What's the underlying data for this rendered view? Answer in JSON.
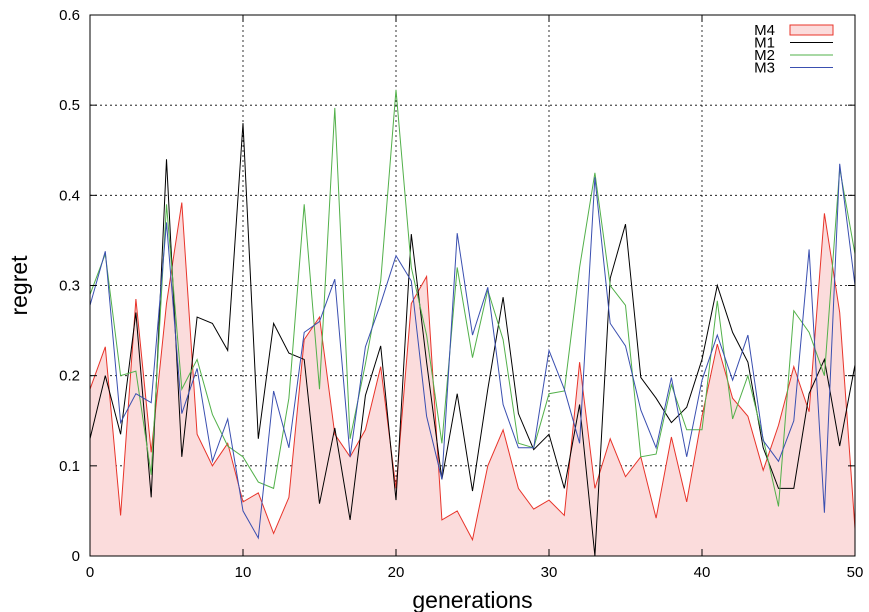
{
  "chart_data": {
    "type": "line",
    "xlabel": "generations",
    "ylabel": "regret",
    "xlim": [
      0,
      50
    ],
    "ylim": [
      0,
      0.6
    ],
    "grid": true,
    "legend_position": "top-right",
    "x_ticks": [
      0,
      10,
      20,
      30,
      40,
      50
    ],
    "y_ticks": [
      0,
      0.1,
      0.2,
      0.3,
      0.4,
      0.5,
      0.6
    ],
    "x_tick_labels": [
      "0",
      "10",
      "20",
      "30",
      "40",
      "50"
    ],
    "y_tick_labels": [
      "0",
      "0.1",
      "0.2",
      "0.3",
      "0.4",
      "0.5",
      "0.6"
    ],
    "x": [
      0,
      1,
      2,
      3,
      4,
      5,
      6,
      7,
      8,
      9,
      10,
      11,
      12,
      13,
      14,
      15,
      16,
      17,
      18,
      19,
      20,
      21,
      22,
      23,
      24,
      25,
      26,
      27,
      28,
      29,
      30,
      31,
      32,
      33,
      34,
      35,
      36,
      37,
      38,
      39,
      40,
      41,
      42,
      43,
      44,
      45,
      46,
      47,
      48,
      49,
      50
    ],
    "series": [
      {
        "name": "M4",
        "style": "filled-area",
        "color": "#e8342a",
        "fill": "#fbdcdc",
        "values": [
          0.185,
          0.232,
          0.045,
          0.285,
          0.115,
          0.28,
          0.392,
          0.135,
          0.1,
          0.125,
          0.06,
          0.07,
          0.025,
          0.065,
          0.24,
          0.265,
          0.135,
          0.11,
          0.14,
          0.21,
          0.075,
          0.28,
          0.31,
          0.04,
          0.05,
          0.018,
          0.1,
          0.14,
          0.075,
          0.052,
          0.062,
          0.045,
          0.215,
          0.075,
          0.13,
          0.088,
          0.11,
          0.042,
          0.132,
          0.06,
          0.155,
          0.235,
          0.175,
          0.155,
          0.095,
          0.145,
          0.21,
          0.16,
          0.38,
          0.27,
          0.03
        ]
      },
      {
        "name": "M1",
        "style": "line",
        "color": "#000000",
        "values": [
          0.13,
          0.2,
          0.135,
          0.27,
          0.065,
          0.44,
          0.11,
          0.265,
          0.258,
          0.228,
          0.48,
          0.13,
          0.258,
          0.225,
          0.218,
          0.058,
          0.142,
          0.04,
          0.178,
          0.233,
          0.062,
          0.357,
          0.215,
          0.085,
          0.18,
          0.072,
          0.185,
          0.287,
          0.158,
          0.118,
          0.135,
          0.075,
          0.168,
          0.0,
          0.308,
          0.368,
          0.198,
          0.175,
          0.148,
          0.165,
          0.218,
          0.3,
          0.248,
          0.215,
          0.12,
          0.075,
          0.075,
          0.18,
          0.218,
          0.122,
          0.212
        ]
      },
      {
        "name": "M2",
        "style": "line",
        "color": "#52b04a",
        "values": [
          0.29,
          0.335,
          0.2,
          0.205,
          0.09,
          0.39,
          0.185,
          0.218,
          0.157,
          0.122,
          0.11,
          0.082,
          0.075,
          0.175,
          0.39,
          0.185,
          0.497,
          0.13,
          0.213,
          0.305,
          0.517,
          0.32,
          0.245,
          0.125,
          0.32,
          0.22,
          0.295,
          0.24,
          0.125,
          0.12,
          0.18,
          0.183,
          0.32,
          0.425,
          0.3,
          0.278,
          0.11,
          0.113,
          0.19,
          0.14,
          0.14,
          0.283,
          0.152,
          0.2,
          0.13,
          0.055,
          0.272,
          0.248,
          0.2,
          0.43,
          0.335
        ]
      },
      {
        "name": "M3",
        "style": "line",
        "color": "#3a4fb0",
        "values": [
          0.278,
          0.338,
          0.148,
          0.18,
          0.17,
          0.37,
          0.158,
          0.208,
          0.105,
          0.152,
          0.05,
          0.02,
          0.183,
          0.12,
          0.248,
          0.26,
          0.307,
          0.11,
          0.232,
          0.28,
          0.333,
          0.305,
          0.155,
          0.085,
          0.358,
          0.245,
          0.298,
          0.168,
          0.12,
          0.12,
          0.228,
          0.185,
          0.125,
          0.42,
          0.258,
          0.233,
          0.162,
          0.12,
          0.198,
          0.11,
          0.195,
          0.245,
          0.195,
          0.245,
          0.128,
          0.105,
          0.15,
          0.34,
          0.048,
          0.435,
          0.3
        ]
      }
    ]
  }
}
